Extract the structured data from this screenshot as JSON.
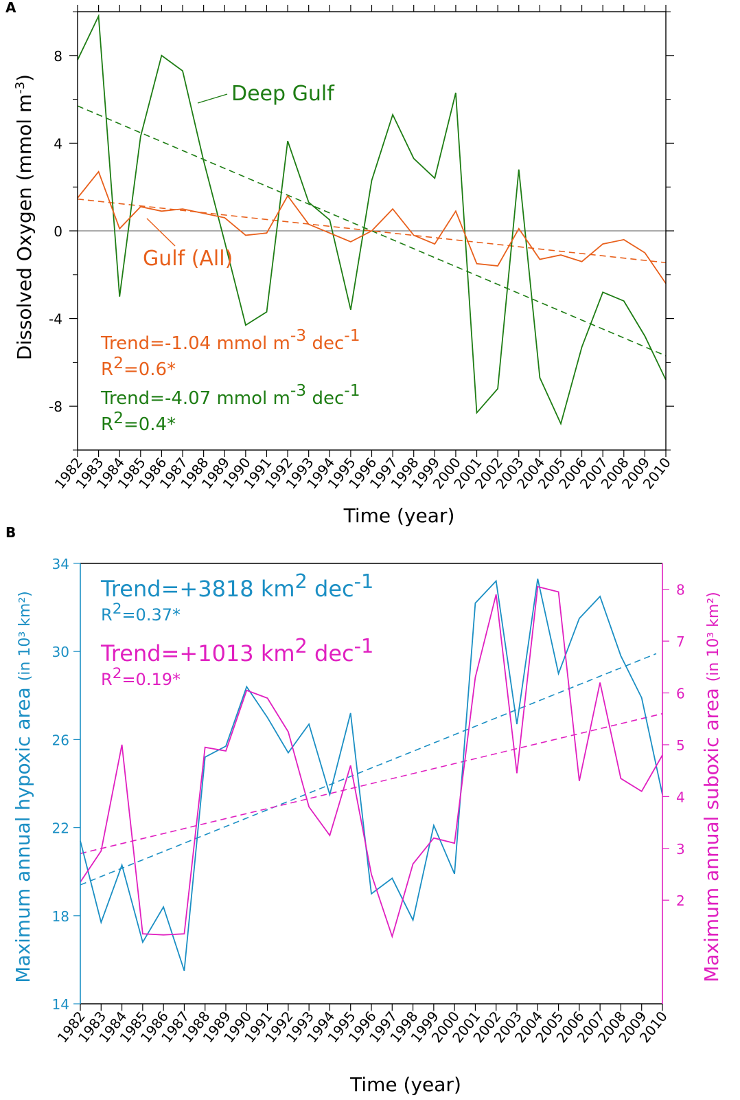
{
  "chart_data": [
    {
      "type": "line",
      "panel": "A",
      "xlabel": "Time (year)",
      "ylabel": "Dissolved Oxygen (mmol m⁻³)",
      "ylabel_main": "Dissolved Oxygen (mmol m",
      "ylabel_sup": "-3",
      "ylabel_end": ")",
      "xlim": [
        1982,
        2010
      ],
      "ylim": [
        -10,
        10
      ],
      "yticks": [
        -8,
        -4,
        0,
        4,
        8
      ],
      "xticks": [
        1982,
        1983,
        1984,
        1985,
        1986,
        1987,
        1988,
        1989,
        1990,
        1991,
        1992,
        1993,
        1994,
        1995,
        1996,
        1997,
        1998,
        1999,
        2000,
        2001,
        2002,
        2003,
        2004,
        2005,
        2006,
        2007,
        2008,
        2009,
        2010
      ],
      "zero_line": true,
      "series": [
        {
          "name": "Deep Gulf",
          "color": "#1e7d14",
          "x": [
            1982,
            1983,
            1984,
            1985,
            1986,
            1987,
            1988,
            1989,
            1990,
            1991,
            1992,
            1993,
            1994,
            1995,
            1996,
            1997,
            1998,
            1999,
            2000,
            2001,
            2002,
            2003,
            2004,
            2005,
            2006,
            2007,
            2008,
            2009,
            2010
          ],
          "values": [
            7.8,
            9.8,
            -3.0,
            4.3,
            8.0,
            7.3,
            3.2,
            -0.5,
            -4.3,
            -3.7,
            4.1,
            1.3,
            0.5,
            -3.6,
            2.3,
            5.3,
            3.3,
            2.4,
            6.3,
            -8.3,
            -7.2,
            2.8,
            -6.7,
            -8.8,
            -5.3,
            -2.8,
            -3.2,
            -4.8,
            -6.8
          ],
          "trend": [
            5.7,
            -5.7
          ]
        },
        {
          "name": "Gulf (All)",
          "color": "#e8601c",
          "x": [
            1982,
            1983,
            1984,
            1985,
            1986,
            1987,
            1988,
            1989,
            1990,
            1991,
            1992,
            1993,
            1994,
            1995,
            1996,
            1997,
            1998,
            1999,
            2000,
            2001,
            2002,
            2003,
            2004,
            2005,
            2006,
            2007,
            2008,
            2009,
            2010
          ],
          "values": [
            1.5,
            2.7,
            0.1,
            1.1,
            0.9,
            1.0,
            0.8,
            0.6,
            -0.2,
            -0.1,
            1.6,
            0.3,
            -0.1,
            -0.5,
            0.0,
            1.0,
            -0.2,
            -0.6,
            0.9,
            -1.5,
            -1.6,
            0.1,
            -1.3,
            -1.1,
            -1.4,
            -0.6,
            -0.4,
            -1.0,
            -2.4
          ],
          "trend": [
            1.45,
            -1.45
          ]
        }
      ],
      "annotations": [
        {
          "kind": "label",
          "text": "Deep Gulf",
          "color": "#1e7d14"
        },
        {
          "kind": "label",
          "text": "Gulf (All)",
          "color": "#e8601c"
        },
        {
          "kind": "trend",
          "color": "#e8601c",
          "pre": "Trend=-1.04 mmol m",
          "sup": "-3",
          "post": " dec",
          "sup2": "-1"
        },
        {
          "kind": "r2",
          "color": "#e8601c",
          "pre": "R",
          "sup": "2",
          "post": "=0.6*"
        },
        {
          "kind": "trend",
          "color": "#1e7d14",
          "pre": "Trend=-4.07 mmol m",
          "sup": "-3",
          "post": " dec",
          "sup2": "-1"
        },
        {
          "kind": "r2",
          "color": "#1e7d14",
          "pre": "R",
          "sup": "2",
          "post": "=0.4*"
        }
      ]
    },
    {
      "type": "line",
      "panel": "B",
      "xlabel": "Time (year)",
      "ylabel_left": "Maximum annual hypoxic area",
      "ylabel_left_unit": "(in 10³ km²)",
      "ylabel_right": "Maximum annual suboxic area",
      "ylabel_right_unit": "(in 10³ km²)",
      "xlim": [
        1982,
        2010
      ],
      "ylim_left": [
        14,
        34
      ],
      "yticks_left": [
        14,
        18,
        22,
        26,
        30,
        34
      ],
      "ylim_right": [
        0,
        8.5
      ],
      "yticks_right": [
        2,
        3,
        4,
        5,
        6,
        7,
        8
      ],
      "xticks": [
        1982,
        1983,
        1984,
        1985,
        1986,
        1987,
        1988,
        1989,
        1990,
        1991,
        1992,
        1993,
        1994,
        1995,
        1996,
        1997,
        1998,
        1999,
        2000,
        2001,
        2002,
        2003,
        2004,
        2005,
        2006,
        2007,
        2008,
        2009,
        2010
      ],
      "series": [
        {
          "name": "Hypoxic area",
          "axis": "left",
          "color": "#1b8fc4",
          "x": [
            1982,
            1983,
            1984,
            1985,
            1986,
            1987,
            1988,
            1989,
            1990,
            1991,
            1992,
            1993,
            1994,
            1995,
            1996,
            1997,
            1998,
            1999,
            2000,
            2001,
            2002,
            2003,
            2004,
            2005,
            2006,
            2007,
            2008,
            2009,
            2010
          ],
          "values": [
            21.4,
            17.7,
            20.3,
            16.8,
            18.4,
            15.5,
            25.2,
            25.7,
            28.4,
            27.0,
            25.4,
            26.7,
            23.5,
            27.2,
            19.0,
            19.7,
            17.8,
            22.1,
            19.9,
            32.2,
            33.2,
            26.7,
            33.3,
            29.0,
            31.5,
            32.5,
            29.8,
            27.9,
            23.5
          ],
          "trend": [
            19.4,
            29.9
          ]
        },
        {
          "name": "Suboxic area",
          "axis": "right",
          "color": "#e020c0",
          "x": [
            1982,
            1983,
            1984,
            1985,
            1986,
            1987,
            1988,
            1989,
            1990,
            1991,
            1992,
            1993,
            1994,
            1995,
            1996,
            1997,
            1998,
            1999,
            2000,
            2001,
            2002,
            2003,
            2004,
            2005,
            2006,
            2007,
            2008,
            2009,
            2010
          ],
          "values": [
            2.35,
            2.95,
            5.0,
            1.35,
            1.33,
            1.35,
            4.95,
            4.88,
            6.05,
            5.9,
            5.25,
            3.8,
            3.25,
            4.6,
            2.5,
            1.3,
            2.7,
            3.2,
            3.1,
            6.3,
            7.9,
            4.45,
            8.05,
            7.95,
            4.3,
            6.2,
            4.35,
            4.1,
            4.8
          ],
          "trend": [
            2.9,
            5.6
          ]
        }
      ],
      "annotations": [
        {
          "kind": "trend",
          "color": "#1b8fc4",
          "pre": "Trend=+3818 km",
          "sup": "2",
          "post": " dec",
          "sup2": "-1"
        },
        {
          "kind": "r2",
          "color": "#1b8fc4",
          "pre": "R",
          "sup": "2",
          "post": "=0.37*"
        },
        {
          "kind": "trend",
          "color": "#e020c0",
          "pre": "Trend=+1013 km",
          "sup": "2",
          "post": " dec",
          "sup2": "-1"
        },
        {
          "kind": "r2",
          "color": "#e020c0",
          "pre": "R",
          "sup": "2",
          "post": "=0.19*"
        }
      ]
    }
  ]
}
